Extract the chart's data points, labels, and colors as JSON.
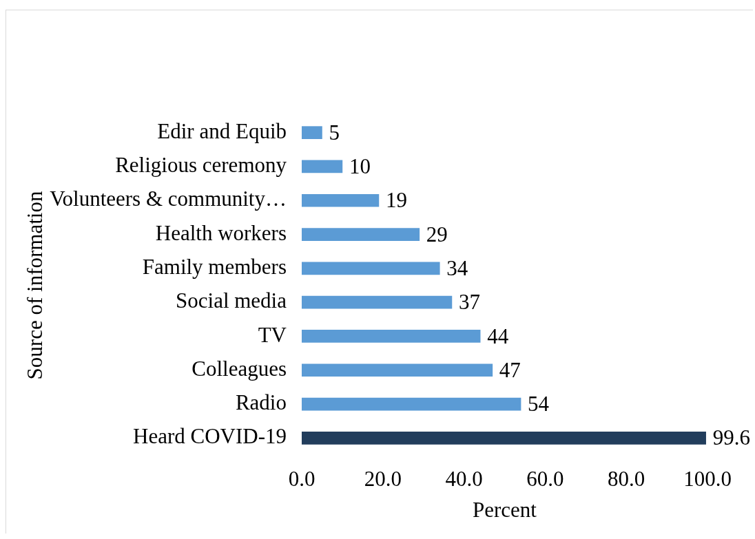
{
  "chart_data": {
    "type": "bar",
    "orientation": "horizontal",
    "xlabel": "Percent",
    "ylabel": "Source of information",
    "categories": [
      "Edir and Equib",
      "Religious ceremony",
      "Volunteers & community…",
      "Health workers",
      "Family members",
      "Social media",
      "TV",
      "Colleagues",
      "Radio",
      "Heard COVID-19"
    ],
    "values": [
      5,
      10,
      19,
      29,
      34,
      37,
      44,
      47,
      54,
      99.6
    ],
    "colors": [
      "#5b9bd5",
      "#5b9bd5",
      "#5b9bd5",
      "#5b9bd5",
      "#5b9bd5",
      "#5b9bd5",
      "#5b9bd5",
      "#5b9bd5",
      "#5b9bd5",
      "#223d5c"
    ],
    "xlim": [
      0,
      100
    ],
    "xticks": [
      {
        "value": 0,
        "label": "0.0"
      },
      {
        "value": 20,
        "label": "20.0"
      },
      {
        "value": 40,
        "label": "40.0"
      },
      {
        "value": 60,
        "label": "60.0"
      },
      {
        "value": 80,
        "label": "80.0"
      },
      {
        "value": 100,
        "label": "100.0"
      }
    ],
    "data_labels": true
  }
}
